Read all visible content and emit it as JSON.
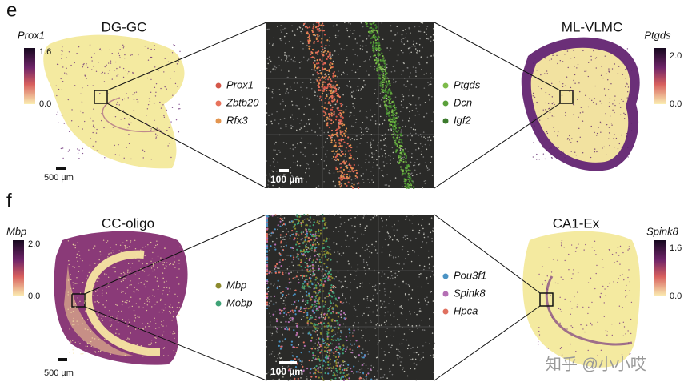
{
  "panels": [
    {
      "label": "e",
      "left": {
        "title": "DG-GC",
        "gene": "Prox1",
        "colorbar": [
          "1.6",
          "0.0"
        ],
        "scalebar": "500 µm"
      },
      "legend_left": [
        {
          "name": "Prox1",
          "color": "#d4574a"
        },
        {
          "name": "Zbtb20",
          "color": "#e8735c"
        },
        {
          "name": "Rfx3",
          "color": "#e3954f"
        }
      ],
      "zoom_scalebar": "100 µm",
      "legend_right": [
        {
          "name": "Ptgds",
          "color": "#7dbb4a"
        },
        {
          "name": "Dcn",
          "color": "#5aa03a"
        },
        {
          "name": "Igf2",
          "color": "#3b7a2c"
        }
      ],
      "right": {
        "title": "ML-VLMC",
        "gene": "Ptgds",
        "colorbar": [
          "2.0",
          "0.0"
        ]
      }
    },
    {
      "label": "f",
      "left": {
        "title": "CC-oligo",
        "gene": "Mbp",
        "colorbar": [
          "2.0",
          "0.0"
        ],
        "scalebar": "500 µm"
      },
      "legend_left": [
        {
          "name": "Mbp",
          "color": "#8c8a2e"
        },
        {
          "name": "Mobp",
          "color": "#3fa276"
        }
      ],
      "zoom_scalebar": "100 µm",
      "legend_right": [
        {
          "name": "Pou3f1",
          "color": "#4b93c4"
        },
        {
          "name": "Spink8",
          "color": "#b46fb4"
        },
        {
          "name": "Hpca",
          "color": "#e0705f"
        }
      ],
      "right": {
        "title": "CA1-Ex",
        "gene": "Spink8",
        "colorbar": [
          "1.6",
          "0.0"
        ]
      }
    }
  ],
  "watermark": "知乎 @小小哎"
}
